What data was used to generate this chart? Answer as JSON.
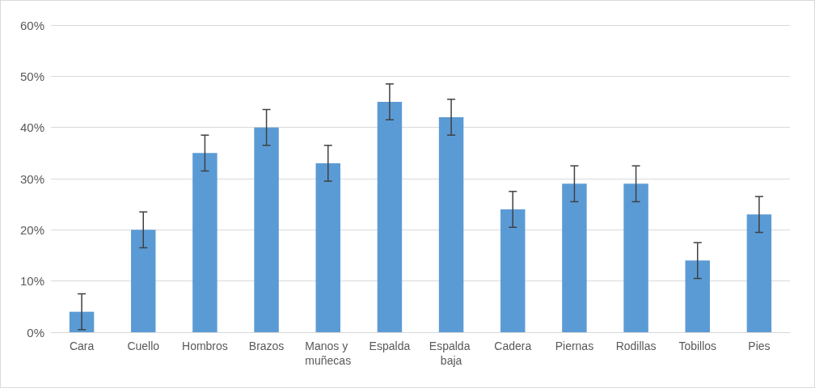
{
  "chart_data": {
    "type": "bar",
    "categories": [
      "Cara",
      "Cuello",
      "Hombros",
      "Brazos",
      "Manos y muñecas",
      "Espalda",
      "Espalda baja",
      "Cadera",
      "Piernas",
      "Rodillas",
      "Tobillos",
      "Pies"
    ],
    "values": [
      4,
      20,
      35,
      40,
      33,
      45,
      42,
      24,
      29,
      29,
      14,
      23
    ],
    "errors": [
      3.5,
      3.5,
      3.5,
      3.5,
      3.5,
      3.5,
      3.5,
      3.5,
      3.5,
      3.5,
      3.5,
      3.5
    ],
    "color": "#5b9bd5",
    "ylim": [
      0,
      60
    ],
    "yticks": [
      {
        "value": 0,
        "label": "0%"
      },
      {
        "value": 10,
        "label": "10%"
      },
      {
        "value": 20,
        "label": "20%"
      },
      {
        "value": 30,
        "label": "30%"
      },
      {
        "value": 40,
        "label": "40%"
      },
      {
        "value": 50,
        "label": "50%"
      },
      {
        "value": 60,
        "label": "60%"
      }
    ],
    "grid": "y"
  }
}
